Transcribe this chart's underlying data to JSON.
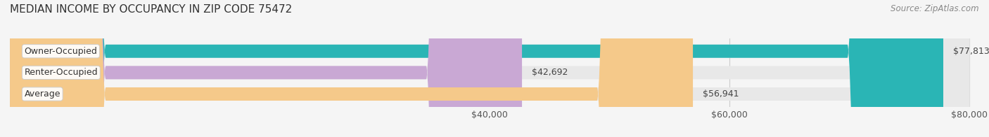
{
  "title": "MEDIAN INCOME BY OCCUPANCY IN ZIP CODE 75472",
  "source": "Source: ZipAtlas.com",
  "categories": [
    "Owner-Occupied",
    "Renter-Occupied",
    "Average"
  ],
  "values": [
    77813,
    42692,
    56941
  ],
  "bar_colors": [
    "#2ab5b5",
    "#c9a8d4",
    "#f5c98a"
  ],
  "bar_labels": [
    "$77,813",
    "$42,692",
    "$56,941"
  ],
  "xlim": [
    0,
    80000
  ],
  "xticks": [
    40000,
    60000,
    80000
  ],
  "xtick_labels": [
    "$40,000",
    "$60,000",
    "$80,000"
  ],
  "background_color": "#f5f5f5",
  "bar_background_color": "#e8e8e8",
  "label_fontsize": 9,
  "title_fontsize": 11,
  "source_fontsize": 8.5
}
